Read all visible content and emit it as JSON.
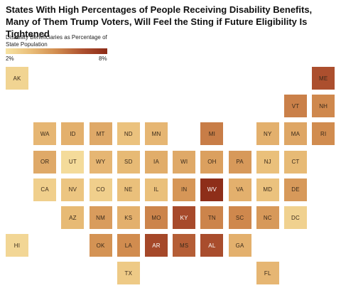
{
  "chart_data": {
    "type": "heatmap",
    "title": "States With High Percentages of People Receiving Disability Benefits, Many of Them Trump Voters, Will Feel the Sting if Future Eligibility Is Tightened",
    "legend": {
      "title": "Disability Beneficiaries as Percentage of State Population",
      "min_label": "2%",
      "max_label": "8%",
      "range": [
        2,
        8
      ],
      "colors": [
        "#f7e3a3",
        "#e9bd78",
        "#d18c4f",
        "#ae5230",
        "#8c2b17"
      ]
    },
    "states": [
      {
        "code": "AK",
        "row": 0,
        "col": 0,
        "value": 2.6
      },
      {
        "code": "ME",
        "row": 0,
        "col": 11,
        "value": 6.6
      },
      {
        "code": "VT",
        "row": 1,
        "col": 10,
        "value": 5.3
      },
      {
        "code": "NH",
        "row": 1,
        "col": 11,
        "value": 5.1
      },
      {
        "code": "WA",
        "row": 2,
        "col": 1,
        "value": 3.7
      },
      {
        "code": "ID",
        "row": 2,
        "col": 2,
        "value": 3.9
      },
      {
        "code": "MT",
        "row": 2,
        "col": 3,
        "value": 4.1
      },
      {
        "code": "ND",
        "row": 2,
        "col": 4,
        "value": 3.3
      },
      {
        "code": "MN",
        "row": 2,
        "col": 5,
        "value": 3.7
      },
      {
        "code": "MI",
        "row": 2,
        "col": 7,
        "value": 5.4
      },
      {
        "code": "NY",
        "row": 2,
        "col": 9,
        "value": 3.9
      },
      {
        "code": "MA",
        "row": 2,
        "col": 10,
        "value": 4.2
      },
      {
        "code": "RI",
        "row": 2,
        "col": 11,
        "value": 5.0
      },
      {
        "code": "OR",
        "row": 3,
        "col": 1,
        "value": 4.1
      },
      {
        "code": "UT",
        "row": 3,
        "col": 2,
        "value": 2.3
      },
      {
        "code": "WY",
        "row": 3,
        "col": 3,
        "value": 3.7
      },
      {
        "code": "SD",
        "row": 3,
        "col": 4,
        "value": 3.6
      },
      {
        "code": "IA",
        "row": 3,
        "col": 5,
        "value": 4.0
      },
      {
        "code": "WI",
        "row": 3,
        "col": 6,
        "value": 4.1
      },
      {
        "code": "OH",
        "row": 3,
        "col": 7,
        "value": 4.4
      },
      {
        "code": "PA",
        "row": 3,
        "col": 8,
        "value": 4.6
      },
      {
        "code": "NJ",
        "row": 3,
        "col": 9,
        "value": 3.4
      },
      {
        "code": "CT",
        "row": 3,
        "col": 10,
        "value": 3.6
      },
      {
        "code": "CA",
        "row": 4,
        "col": 1,
        "value": 2.8
      },
      {
        "code": "NV",
        "row": 4,
        "col": 2,
        "value": 3.2
      },
      {
        "code": "CO",
        "row": 4,
        "col": 3,
        "value": 2.8
      },
      {
        "code": "NE",
        "row": 4,
        "col": 4,
        "value": 3.4
      },
      {
        "code": "IL",
        "row": 4,
        "col": 5,
        "value": 3.4
      },
      {
        "code": "IN",
        "row": 4,
        "col": 6,
        "value": 4.7
      },
      {
        "code": "WV",
        "row": 4,
        "col": 7,
        "value": 7.9
      },
      {
        "code": "VA",
        "row": 4,
        "col": 8,
        "value": 3.9
      },
      {
        "code": "MD",
        "row": 4,
        "col": 9,
        "value": 3.3
      },
      {
        "code": "DE",
        "row": 4,
        "col": 10,
        "value": 4.6
      },
      {
        "code": "AZ",
        "row": 5,
        "col": 2,
        "value": 3.6
      },
      {
        "code": "NM",
        "row": 5,
        "col": 3,
        "value": 4.5
      },
      {
        "code": "KS",
        "row": 5,
        "col": 4,
        "value": 3.9
      },
      {
        "code": "MO",
        "row": 5,
        "col": 5,
        "value": 5.2
      },
      {
        "code": "KY",
        "row": 5,
        "col": 6,
        "value": 6.8
      },
      {
        "code": "TN",
        "row": 5,
        "col": 7,
        "value": 5.2
      },
      {
        "code": "SC",
        "row": 5,
        "col": 8,
        "value": 5.1
      },
      {
        "code": "NC",
        "row": 5,
        "col": 9,
        "value": 4.6
      },
      {
        "code": "DC",
        "row": 5,
        "col": 10,
        "value": 2.7
      },
      {
        "code": "HI",
        "row": 6,
        "col": 0,
        "value": 2.5
      },
      {
        "code": "OK",
        "row": 6,
        "col": 3,
        "value": 4.8
      },
      {
        "code": "LA",
        "row": 6,
        "col": 4,
        "value": 5.0
      },
      {
        "code": "AR",
        "row": 6,
        "col": 5,
        "value": 6.9
      },
      {
        "code": "MS",
        "row": 6,
        "col": 6,
        "value": 6.2
      },
      {
        "code": "AL",
        "row": 6,
        "col": 7,
        "value": 6.7
      },
      {
        "code": "GA",
        "row": 6,
        "col": 8,
        "value": 3.9
      },
      {
        "code": "TX",
        "row": 7,
        "col": 4,
        "value": 3.0
      },
      {
        "code": "FL",
        "row": 7,
        "col": 9,
        "value": 3.7
      }
    ]
  }
}
